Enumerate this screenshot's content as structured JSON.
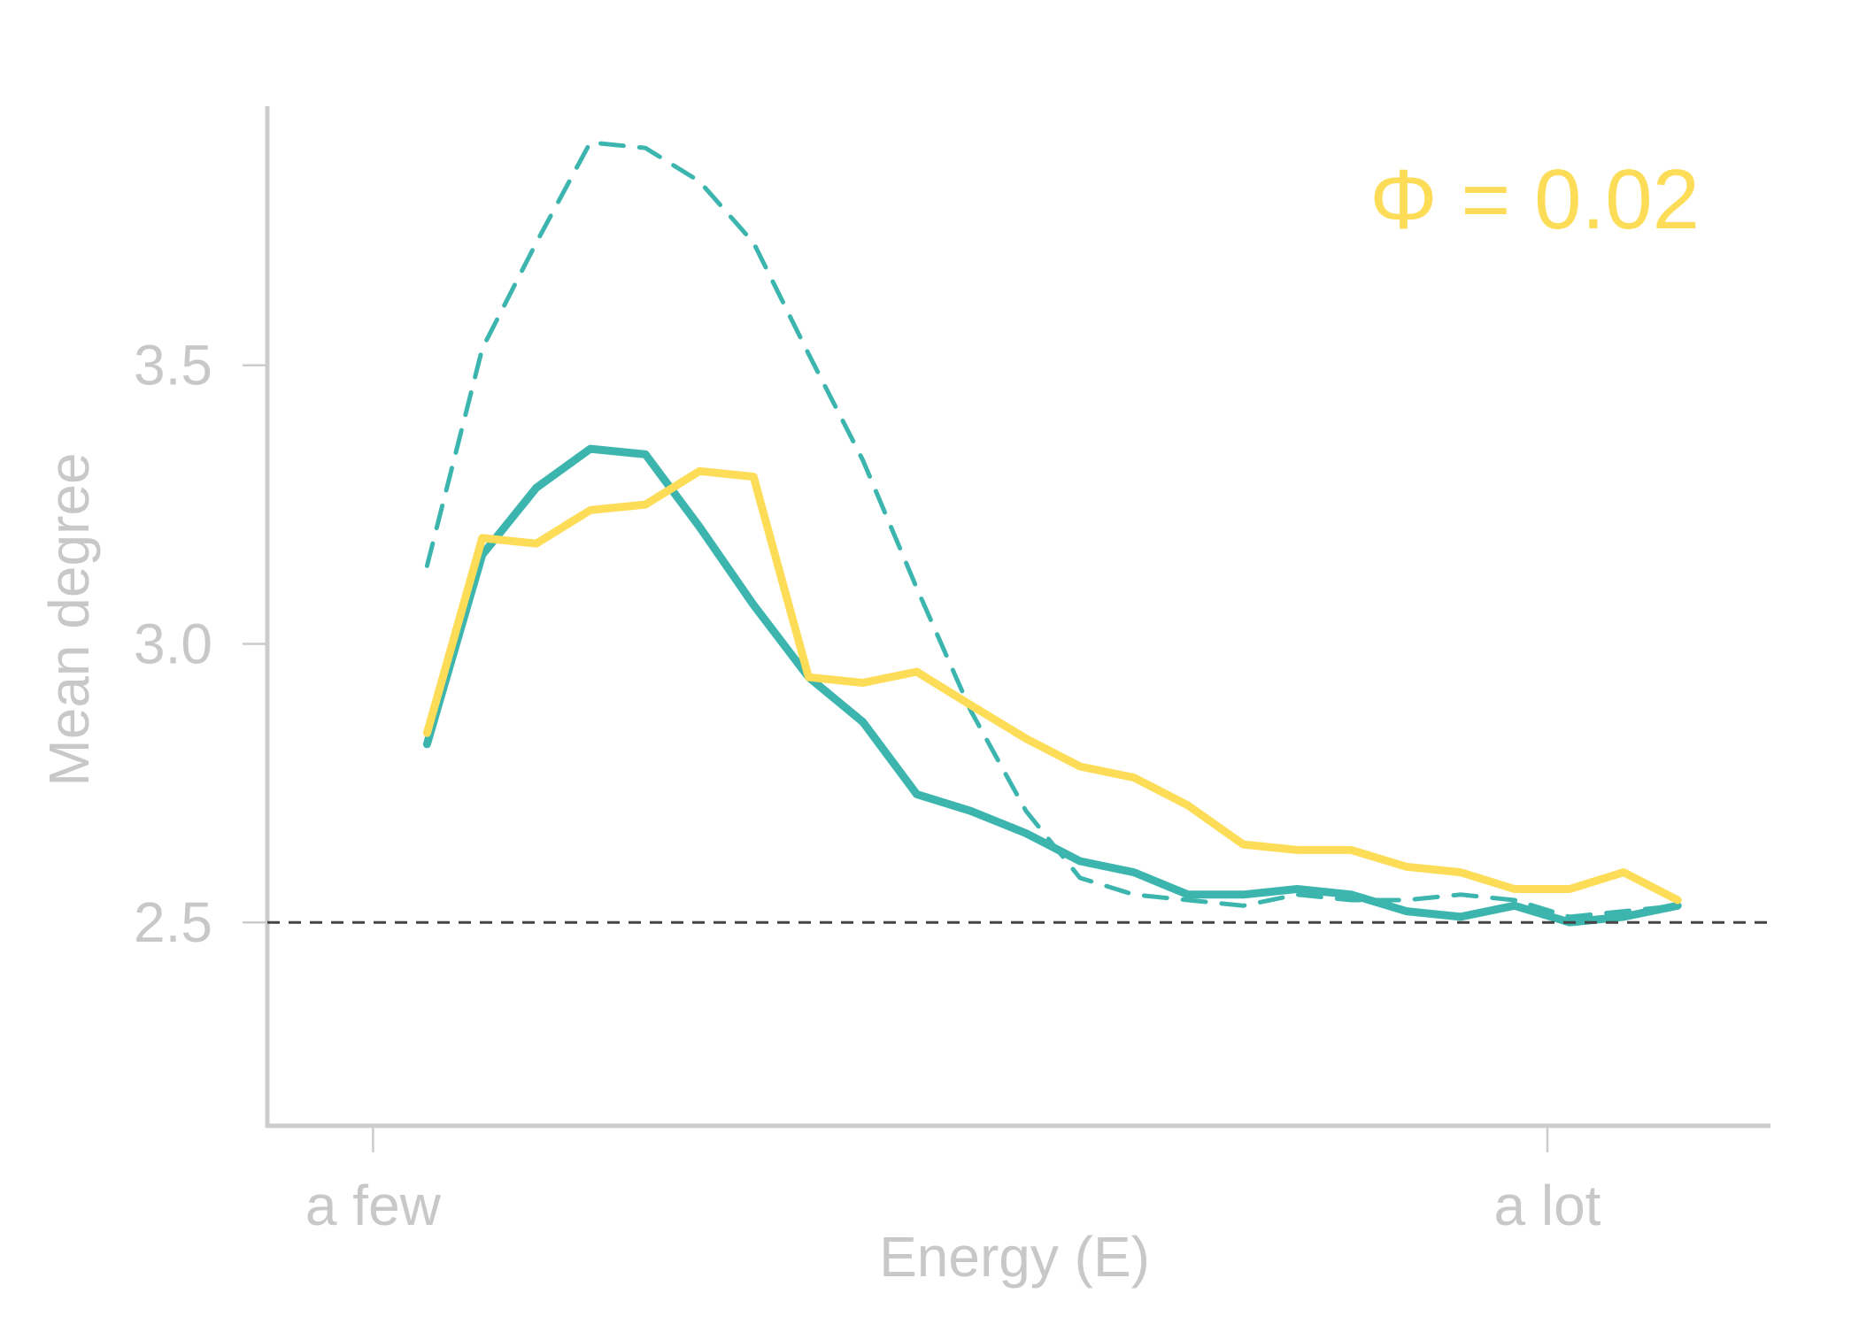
{
  "chart_data": {
    "type": "line",
    "title": "",
    "xlabel": "Energy (E)",
    "ylabel": "Mean degree",
    "xlim": [
      -0.9,
      11.9
    ],
    "ylim": [
      2.135,
      3.965
    ],
    "x_ticks": [
      {
        "value": 0,
        "label": "a few"
      },
      {
        "value": 10,
        "label": "a lot"
      }
    ],
    "y_ticks": [
      {
        "value": 2.5,
        "label": "2.5"
      },
      {
        "value": 3.0,
        "label": "3.0"
      },
      {
        "value": 3.5,
        "label": "3.5"
      }
    ],
    "reference_line": {
      "y": 2.5,
      "style": "dashed",
      "color": "#444444"
    },
    "annotation": {
      "text": "Φ = 0.02",
      "color": "#FDDD57",
      "placement": "top-right"
    },
    "grid": false,
    "legend": "none",
    "x": [
      0.46,
      0.93,
      1.39,
      1.85,
      2.32,
      2.78,
      3.24,
      3.71,
      4.17,
      4.63,
      5.09,
      5.56,
      6.02,
      6.48,
      6.94,
      7.41,
      7.87,
      8.33,
      8.8,
      9.26,
      9.72,
      10.19,
      10.65,
      11.11
    ],
    "series": [
      {
        "color": "#3DB5AF",
        "style": "dashed",
        "values": [
          3.14,
          3.53,
          3.72,
          3.9,
          3.89,
          3.83,
          3.72,
          3.52,
          3.33,
          3.1,
          2.88,
          2.7,
          2.58,
          2.55,
          2.54,
          2.53,
          2.55,
          2.54,
          2.54,
          2.55,
          2.54,
          2.51,
          2.52,
          2.53
        ]
      },
      {
        "color": "#3DB5AF",
        "style": "solid",
        "values": [
          2.82,
          3.16,
          3.28,
          3.35,
          3.34,
          3.21,
          3.07,
          2.94,
          2.86,
          2.73,
          2.7,
          2.66,
          2.61,
          2.59,
          2.55,
          2.55,
          2.56,
          2.55,
          2.52,
          2.51,
          2.53,
          2.5,
          2.51,
          2.53
        ]
      },
      {
        "color": "#FDDD57",
        "style": "solid",
        "values": [
          2.84,
          3.19,
          3.18,
          3.24,
          3.25,
          3.31,
          3.3,
          2.94,
          2.93,
          2.95,
          2.89,
          2.83,
          2.78,
          2.76,
          2.71,
          2.64,
          2.63,
          2.63,
          2.6,
          2.59,
          2.56,
          2.56,
          2.59,
          2.54
        ]
      }
    ]
  }
}
